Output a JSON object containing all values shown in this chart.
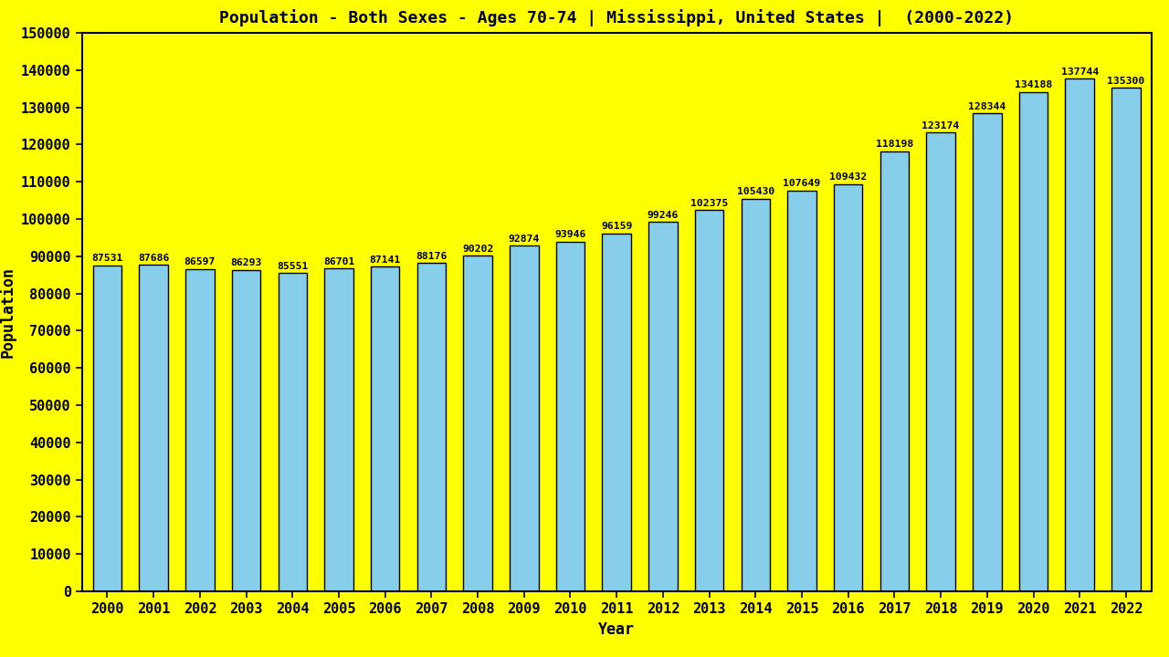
{
  "title": "Population - Both Sexes - Ages 70-74 | Mississippi, United States |  (2000-2022)",
  "xlabel": "Year",
  "ylabel": "Population",
  "background_color": "#FFFF00",
  "bar_color": "#87CEEB",
  "bar_edge_color": "#000000",
  "years": [
    2000,
    2001,
    2002,
    2003,
    2004,
    2005,
    2006,
    2007,
    2008,
    2009,
    2010,
    2011,
    2012,
    2013,
    2014,
    2015,
    2016,
    2017,
    2018,
    2019,
    2020,
    2021,
    2022
  ],
  "values": [
    87531,
    87686,
    86597,
    86293,
    85551,
    86701,
    87141,
    88176,
    90202,
    92874,
    93946,
    96159,
    99246,
    102375,
    105430,
    107649,
    109432,
    118198,
    123174,
    128344,
    134188,
    137744,
    135300
  ],
  "ylim": [
    0,
    150000
  ],
  "ytick_step": 10000,
  "title_fontsize": 13,
  "label_fontsize": 12,
  "tick_fontsize": 11,
  "value_fontsize": 8.2,
  "text_color": "#000000",
  "bar_width": 0.62
}
